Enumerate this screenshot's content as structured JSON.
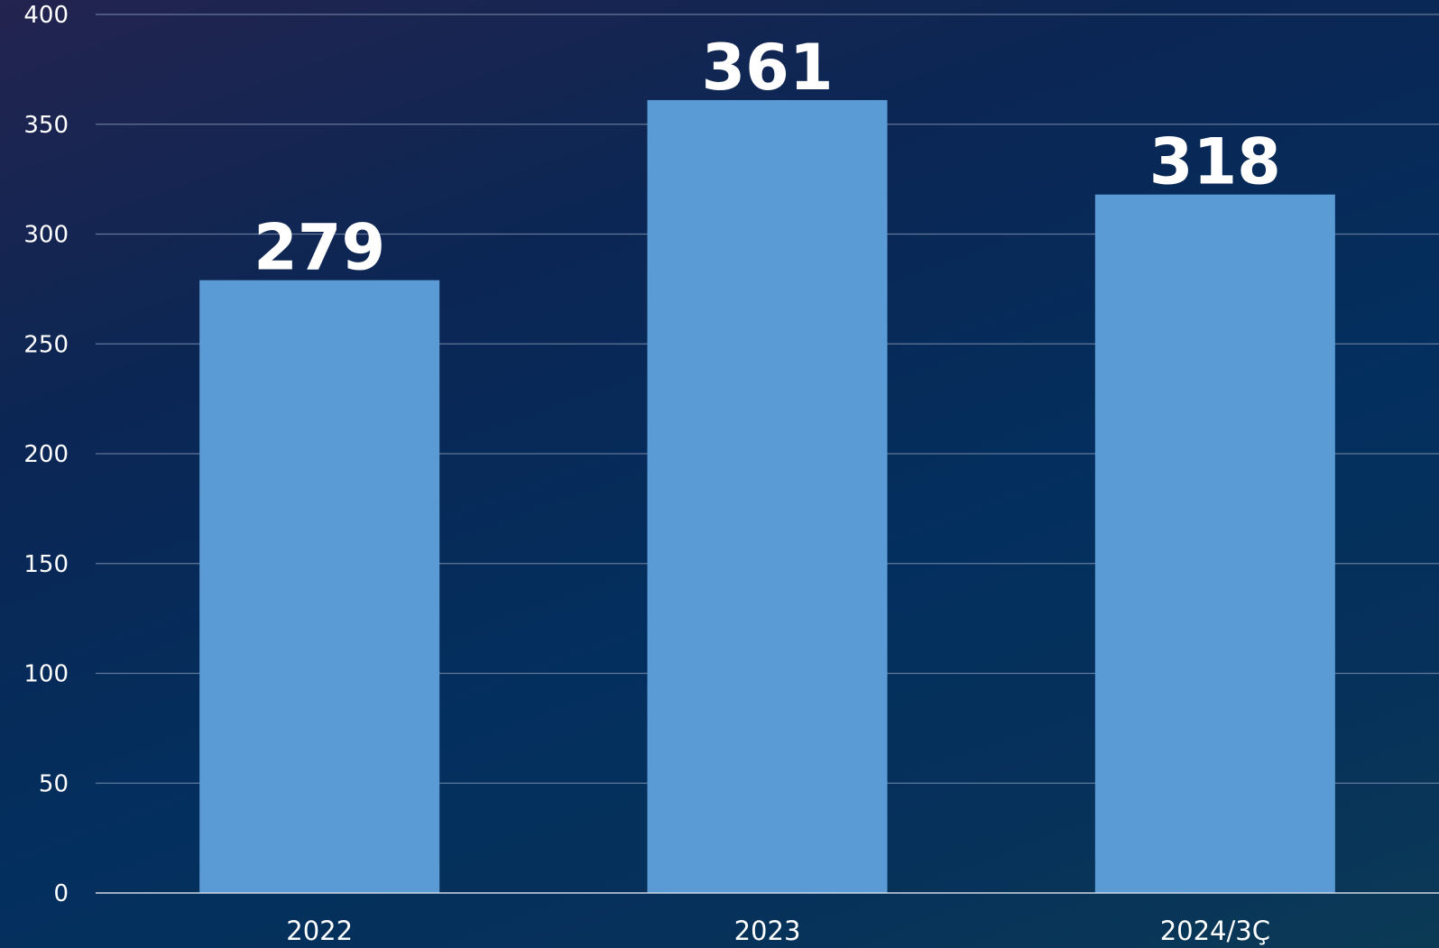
{
  "chart_data": {
    "type": "bar",
    "categories": [
      "2022",
      "2023",
      "2024/3Ç"
    ],
    "values": [
      279,
      361,
      318
    ],
    "data_labels": [
      "279",
      "361",
      "318"
    ],
    "title": "",
    "xlabel": "",
    "ylabel": "",
    "ylim": [
      0,
      400
    ],
    "yticks": [
      0,
      50,
      100,
      150,
      200,
      250,
      300,
      350,
      400
    ],
    "ytick_labels": [
      "0",
      "50",
      "100",
      "150",
      "200",
      "250",
      "300",
      "350",
      "400"
    ],
    "grid": true,
    "legend": "none",
    "colors": {
      "bar": "#5b9bd5",
      "grid": "#7f93b0",
      "baseline": "#d0d8e4",
      "text": "#ffffff"
    }
  }
}
